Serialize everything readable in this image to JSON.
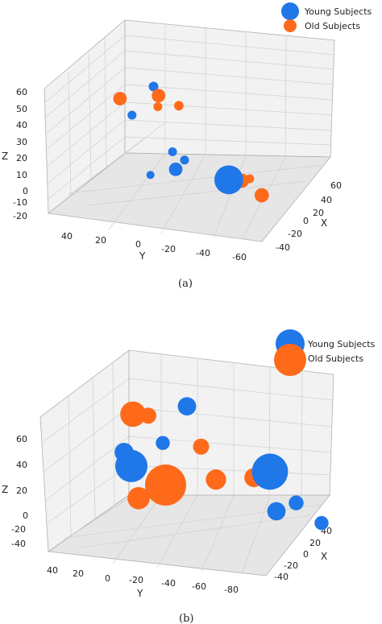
{
  "colors": {
    "young": "#1f77e8",
    "old": "#ff6a1a",
    "pane": "#f2f2f2",
    "grid": "#d0d0d0"
  },
  "chart_data": [
    {
      "type": "scatter",
      "caption": "(a)",
      "zlabel": "Z",
      "ylabel": "Y",
      "xlabel": "X",
      "zticks": [
        "60",
        "50",
        "40",
        "30",
        "20",
        "10",
        "0",
        "-10",
        "-20"
      ],
      "yticks": [
        "40",
        "20",
        "0",
        "-20",
        "-40",
        "-60"
      ],
      "xticks": [
        "60",
        "40",
        "20",
        "0",
        "-20",
        "-40"
      ],
      "legend": [
        "Young Subjects",
        "Old Subjects"
      ],
      "series": [
        {
          "name": "Young Subjects",
          "color_key": "young",
          "points": [
            {
              "x": 20,
              "y": 15,
              "z": 55,
              "size": 36
            },
            {
              "x": 5,
              "y": 35,
              "z": 30,
              "size": 30
            },
            {
              "x": -5,
              "y": 15,
              "z": 10,
              "size": 30
            },
            {
              "x": -10,
              "y": 10,
              "z": 5,
              "size": 30
            },
            {
              "x": -20,
              "y": 20,
              "z": -5,
              "size": 70
            },
            {
              "x": -30,
              "y": 40,
              "z": -15,
              "size": 25
            },
            {
              "x": 40,
              "y": -40,
              "z": 15,
              "size": 320
            }
          ]
        },
        {
          "name": "Old Subjects",
          "color_key": "old",
          "points": [
            {
              "x": 35,
              "y": 5,
              "z": 55,
              "size": 70
            },
            {
              "x": 30,
              "y": -5,
              "z": 50,
              "size": 35
            },
            {
              "x": 25,
              "y": 10,
              "z": 45,
              "size": 30
            },
            {
              "x": 10,
              "y": 40,
              "z": 40,
              "size": 70
            },
            {
              "x": 45,
              "y": -55,
              "z": 20,
              "size": 30
            },
            {
              "x": 40,
              "y": -60,
              "z": 10,
              "size": 80
            },
            {
              "x": 0,
              "y": -30,
              "z": 5,
              "size": 30
            },
            {
              "x": -10,
              "y": -25,
              "z": 0,
              "size": 70
            }
          ]
        }
      ]
    },
    {
      "type": "scatter",
      "caption": "(b)",
      "zlabel": "Z",
      "ylabel": "Y",
      "xlabel": "X",
      "zticks": [
        "60",
        "40",
        "20",
        "0",
        "-20",
        "-40"
      ],
      "yticks": [
        "40",
        "20",
        "0",
        "-20",
        "-40",
        "-60",
        "-80"
      ],
      "xticks": [
        "40",
        "20",
        "0",
        "-20",
        "-40"
      ],
      "legend": [
        "Young Subjects",
        "Old Subjects"
      ],
      "series": [
        {
          "name": "Young Subjects",
          "color_key": "young",
          "points": [
            {
              "x": 40,
              "y": -20,
              "z": 60,
              "size": 130
            },
            {
              "x": 10,
              "y": 10,
              "z": 30,
              "size": 75
            },
            {
              "x": 0,
              "y": 40,
              "z": 20,
              "size": 140
            },
            {
              "x": -10,
              "y": 40,
              "z": 10,
              "size": 400
            },
            {
              "x": 10,
              "y": -60,
              "z": 20,
              "size": 500
            },
            {
              "x": -5,
              "y": -70,
              "z": 0,
              "size": 85
            },
            {
              "x": -20,
              "y": -50,
              "z": -10,
              "size": 130
            },
            {
              "x": -40,
              "y": -70,
              "z": -20,
              "size": 75
            }
          ]
        },
        {
          "name": "Old Subjects",
          "color_key": "old",
          "points": [
            {
              "x": 30,
              "y": 20,
              "z": 50,
              "size": 250
            },
            {
              "x": 30,
              "y": 10,
              "z": 50,
              "size": 100
            },
            {
              "x": 10,
              "y": -15,
              "z": 30,
              "size": 100
            },
            {
              "x": 0,
              "y": -20,
              "z": 10,
              "size": 160
            },
            {
              "x": -10,
              "y": -40,
              "z": 10,
              "size": 140
            },
            {
              "x": -15,
              "y": 20,
              "z": 0,
              "size": 650
            },
            {
              "x": -20,
              "y": 40,
              "z": -10,
              "size": 190
            }
          ]
        }
      ]
    }
  ]
}
